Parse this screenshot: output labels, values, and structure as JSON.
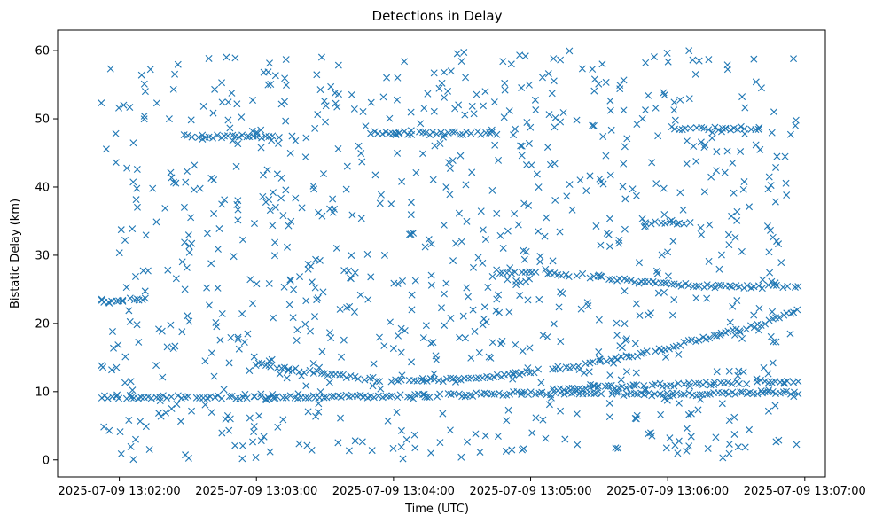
{
  "chart_data": {
    "type": "scatter",
    "title": "Detections in Delay",
    "xlabel": "Time (UTC)",
    "ylabel": "Bistatic Delay (km)",
    "marker": "x",
    "color": "#1f77b4",
    "x_unit": "seconds after 2025-07-09 13:02:00 UTC",
    "xlim": [
      -27,
      309
    ],
    "ylim": [
      -2.5,
      63
    ],
    "xticks": [
      0,
      60,
      120,
      180,
      240,
      300
    ],
    "xtick_labels": [
      "2025-07-09 13:02:00",
      "2025-07-09 13:03:00",
      "2025-07-09 13:04:00",
      "2025-07-09 13:05:00",
      "2025-07-09 13:06:00",
      "2025-07-09 13:07:00"
    ],
    "yticks": [
      0,
      10,
      20,
      30,
      40,
      50,
      60
    ],
    "ytick_labels": [
      "0",
      "10",
      "20",
      "30",
      "40",
      "50",
      "60"
    ],
    "grid": false,
    "tracks": [
      {
        "name": "rising track",
        "t_start": 58,
        "t_end": 297,
        "delay_points": [
          [
            58,
            14.2
          ],
          [
            80,
            13.0
          ],
          [
            100,
            12.2
          ],
          [
            115,
            11.7
          ],
          [
            130,
            11.6
          ],
          [
            150,
            11.8
          ],
          [
            170,
            12.5
          ],
          [
            200,
            13.8
          ],
          [
            230,
            15.6
          ],
          [
            260,
            18.2
          ],
          [
            280,
            19.8
          ],
          [
            297,
            21.9
          ]
        ]
      },
      {
        "name": "descending track",
        "t_start": 165,
        "t_end": 297,
        "delay_points": [
          [
            165,
            27.6
          ],
          [
            200,
            27.0
          ],
          [
            230,
            26.0
          ],
          [
            260,
            25.4
          ],
          [
            297,
            25.4
          ]
        ]
      },
      {
        "name": "low band",
        "t_start": -8,
        "t_end": 297,
        "delay_points": [
          [
            -8,
            9.2
          ],
          [
            60,
            9.2
          ],
          [
            120,
            9.3
          ],
          [
            180,
            9.8
          ],
          [
            240,
            9.6
          ],
          [
            297,
            9.8
          ]
        ]
      },
      {
        "name": "low band 2",
        "t_start": 190,
        "t_end": 297,
        "delay_points": [
          [
            190,
            10.3
          ],
          [
            240,
            11.0
          ],
          [
            297,
            11.6
          ]
        ]
      },
      {
        "name": "left track",
        "t_start": -8,
        "t_end": 10,
        "delay_points": [
          [
            -8,
            23.2
          ],
          [
            10,
            23.7
          ]
        ]
      },
      {
        "name": "47 km band",
        "t_start": 30,
        "t_end": 70,
        "delay_points": [
          [
            30,
            47.4
          ],
          [
            70,
            47.4
          ]
        ]
      },
      {
        "name": "48 km band",
        "t_start": 110,
        "t_end": 165,
        "delay_points": [
          [
            110,
            47.9
          ],
          [
            165,
            47.9
          ]
        ]
      },
      {
        "name": "48.5 km band",
        "t_start": 240,
        "t_end": 280,
        "delay_points": [
          [
            240,
            48.6
          ],
          [
            280,
            48.6
          ]
        ]
      },
      {
        "name": "35 km band",
        "t_start": 230,
        "t_end": 250,
        "delay_points": [
          [
            230,
            34.8
          ],
          [
            250,
            34.8
          ]
        ]
      }
    ],
    "background_clutter": {
      "delay_range": [
        0,
        60
      ],
      "time_range": [
        -8,
        297
      ]
    }
  }
}
